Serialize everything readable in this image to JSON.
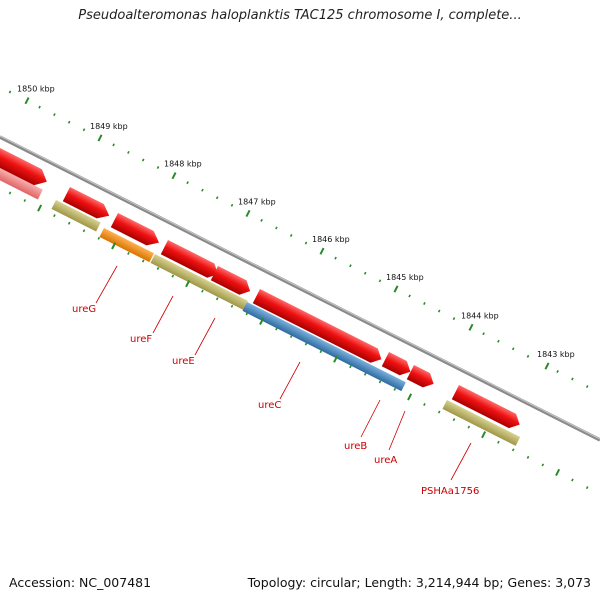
{
  "header": {
    "title": "Pseudoalteromonas haloplanktis TAC125 chromosome I, complete..."
  },
  "footer": {
    "accession": "Accession: NC_007481",
    "topology": "Topology: circular; Length: 3,214,944 bp; Genes: 3,073"
  },
  "ruler": {
    "labels": [
      "1850 kbp",
      "1849 kbp",
      "1848 kbp",
      "1847 kbp",
      "1846 kbp",
      "1845 kbp",
      "1844 kbp",
      "1843 kbp"
    ]
  },
  "genes": [
    {
      "name": "ureG",
      "strand": "forward"
    },
    {
      "name": "ureF",
      "strand": "forward"
    },
    {
      "name": "ureE",
      "strand": "forward"
    },
    {
      "name": "ureC",
      "strand": "forward"
    },
    {
      "name": "ureB",
      "strand": "forward"
    },
    {
      "name": "ureA",
      "strand": "forward"
    },
    {
      "name": "PSHAa1756",
      "strand": "forward"
    }
  ],
  "colors": {
    "cds": "#ee1111",
    "cds_light": "#ef7a7a",
    "track_olive": "#b8b060",
    "track_orange": "#ee8a10",
    "track_blue": "#4a88c0",
    "backbone": "#888888",
    "tick": "#2a8a2a",
    "label": "#cc0000"
  }
}
